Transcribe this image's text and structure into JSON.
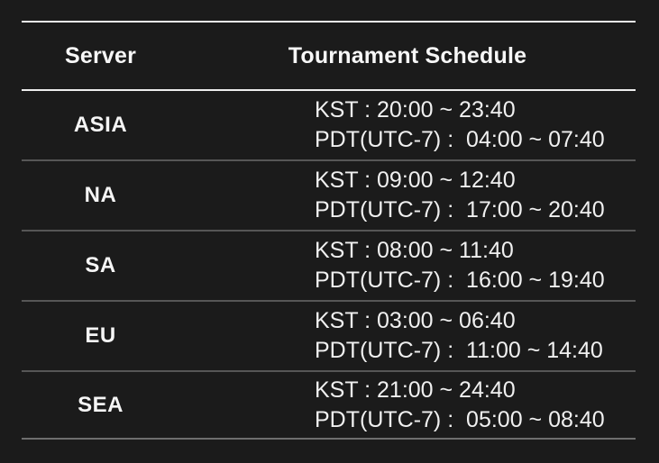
{
  "table": {
    "columns": {
      "server": "Server",
      "schedule": "Tournament Schedule"
    },
    "rows": [
      {
        "server": "ASIA",
        "kst": "KST : 20:00 ~ 23:40",
        "pdt": "PDT(UTC-7) :  04:00 ~ 07:40"
      },
      {
        "server": "NA",
        "kst": "KST : 09:00 ~ 12:40",
        "pdt": "PDT(UTC-7) :  17:00 ~ 20:40"
      },
      {
        "server": "SA",
        "kst": "KST : 08:00 ~ 11:40",
        "pdt": "PDT(UTC-7) :  16:00 ~ 19:40"
      },
      {
        "server": "EU",
        "kst": "KST : 03:00 ~ 06:40",
        "pdt": "PDT(UTC-7) :  11:00 ~ 14:40"
      },
      {
        "server": "SEA",
        "kst": "KST : 21:00 ~ 24:40",
        "pdt": "PDT(UTC-7) :  05:00 ~ 08:40"
      }
    ]
  },
  "colors": {
    "background": "#1b1b1b",
    "header_border": "#ededed",
    "row_divider": "#565656",
    "text": "#f5f5f5"
  }
}
